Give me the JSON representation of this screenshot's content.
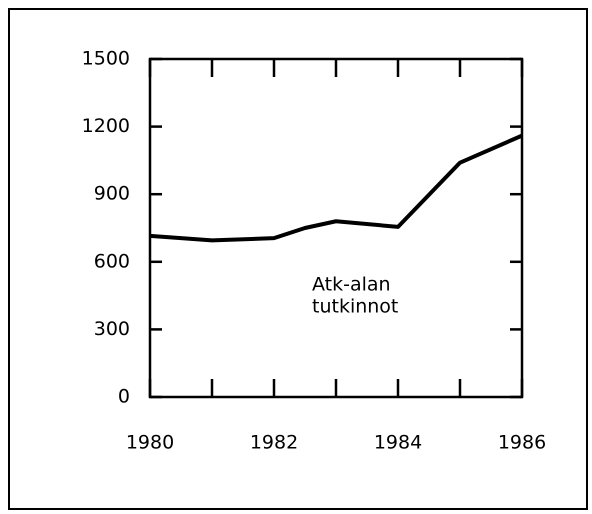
{
  "chart_data": {
    "type": "line",
    "annotation": [
      "Atk-alan",
      "tutkinnot"
    ],
    "x": [
      1980,
      1981,
      1982,
      1982.5,
      1983,
      1984,
      1985,
      1986
    ],
    "series": [
      {
        "color": "#000000",
        "values": [
          715,
          695,
          705,
          750,
          780,
          755,
          1040,
          1160
        ]
      }
    ],
    "xlim": [
      1980,
      1986
    ],
    "xticks": [
      1980,
      1982,
      1984,
      1986
    ],
    "xminorticks": [
      1981,
      1983,
      1985
    ],
    "ylim": [
      0,
      1500
    ],
    "yticks": [
      0,
      300,
      600,
      900,
      1200,
      1500
    ]
  }
}
